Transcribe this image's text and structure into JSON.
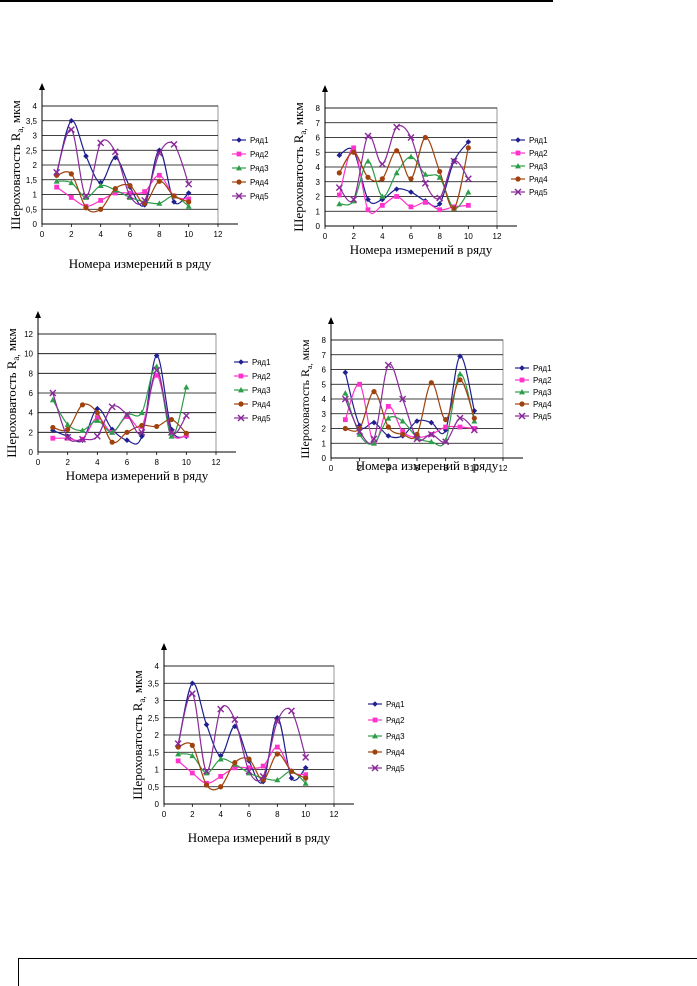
{
  "series_names": [
    "Ряд1",
    "Ряд2",
    "Ряд3",
    "Ряд4",
    "Ряд5"
  ],
  "series_colors": [
    "#1f1f8f",
    "#ff33cc",
    "#2e9e4a",
    "#a0420e",
    "#8a2a9a"
  ],
  "chart_data": [
    {
      "type": "line",
      "title": "",
      "xlabel": "Номера измерений в ряду",
      "ylabel_main": "Шероховатость R",
      "ylabel_sub": "a,",
      "ylabel_unit": " мкм",
      "xlim": [
        0,
        12
      ],
      "xticks": [
        "0",
        "2",
        "4",
        "6",
        "8",
        "10",
        "12"
      ],
      "ylim": [
        0,
        4
      ],
      "yticks": [
        "0",
        "0,5",
        "1",
        "1,5",
        "2",
        "2,5",
        "3",
        "3,5",
        "4"
      ],
      "grid": true,
      "legend": "right",
      "x": [
        1,
        2,
        3,
        4,
        5,
        6,
        7,
        8,
        9,
        10
      ],
      "series": [
        {
          "name": "Ряд1",
          "values": [
            1.7,
            3.5,
            2.3,
            1.4,
            2.25,
            1.25,
            0.65,
            2.5,
            0.75,
            1.05
          ]
        },
        {
          "name": "Ряд2",
          "values": [
            1.25,
            0.9,
            0.6,
            0.8,
            1.05,
            1.05,
            1.1,
            1.65,
            0.95,
            0.85
          ]
        },
        {
          "name": "Ряд3",
          "values": [
            1.45,
            1.4,
            0.9,
            1.3,
            1.15,
            0.9,
            0.75,
            0.7,
            0.95,
            0.6
          ]
        },
        {
          "name": "Ряд4",
          "values": [
            1.65,
            1.7,
            0.55,
            0.5,
            1.2,
            1.3,
            0.7,
            1.45,
            0.95,
            0.75
          ]
        },
        {
          "name": "Ряд5",
          "values": [
            1.75,
            3.2,
            0.95,
            2.75,
            2.45,
            0.95,
            0.8,
            2.4,
            2.7,
            1.35
          ]
        }
      ]
    },
    {
      "type": "line",
      "title": "",
      "xlabel": "Номера измерений в ряду",
      "ylabel_main": "Шероховатость R",
      "ylabel_sub": "a,",
      "ylabel_unit": " мкм",
      "xlim": [
        0,
        12
      ],
      "xticks": [
        "0",
        "2",
        "4",
        "6",
        "8",
        "10",
        "12"
      ],
      "ylim": [
        0,
        8
      ],
      "yticks": [
        "0",
        "1",
        "2",
        "3",
        "4",
        "5",
        "6",
        "7",
        "8"
      ],
      "grid": true,
      "legend": "right",
      "x": [
        1,
        2,
        3,
        4,
        5,
        6,
        7,
        8,
        9,
        10
      ],
      "series": [
        {
          "name": "Ряд1",
          "values": [
            4.8,
            5.1,
            1.8,
            1.8,
            2.5,
            2.3,
            1.7,
            1.5,
            4.4,
            5.7
          ]
        },
        {
          "name": "Ряд2",
          "values": [
            2.1,
            5.3,
            1.1,
            1.4,
            2.0,
            1.3,
            1.6,
            1.1,
            1.3,
            1.4
          ]
        },
        {
          "name": "Ряд3",
          "values": [
            1.5,
            1.7,
            4.4,
            2.0,
            3.6,
            4.7,
            3.5,
            3.3,
            1.2,
            2.3
          ]
        },
        {
          "name": "Ряд4",
          "values": [
            3.6,
            5.0,
            3.3,
            3.2,
            5.1,
            3.2,
            6.0,
            3.7,
            1.2,
            5.3
          ]
        },
        {
          "name": "Ряд5",
          "values": [
            2.6,
            1.8,
            6.1,
            4.2,
            6.7,
            6.0,
            2.9,
            1.9,
            4.4,
            3.2
          ]
        }
      ]
    },
    {
      "type": "line",
      "title": "",
      "xlabel": "Номера измерений в ряду",
      "ylabel_main": "Шероховатость R",
      "ylabel_sub": "a,",
      "ylabel_unit": " мкм",
      "xlim": [
        0,
        12
      ],
      "xticks": [
        "0",
        "2",
        "4",
        "6",
        "8",
        "10",
        "12"
      ],
      "ylim": [
        0,
        12
      ],
      "yticks": [
        "0",
        "2",
        "4",
        "6",
        "8",
        "10",
        "12"
      ],
      "grid": true,
      "legend": "right",
      "x": [
        1,
        2,
        3,
        4,
        5,
        6,
        7,
        8,
        9,
        10
      ],
      "series": [
        {
          "name": "Ряд1",
          "values": [
            2.2,
            1.6,
            1.2,
            4.4,
            2.3,
            1.2,
            1.6,
            9.8,
            2.3,
            1.6
          ]
        },
        {
          "name": "Ряд2",
          "values": [
            1.4,
            1.4,
            1.3,
            3.5,
            2.0,
            3.6,
            2.6,
            7.8,
            1.9,
            1.7
          ]
        },
        {
          "name": "Ряд3",
          "values": [
            5.3,
            2.8,
            2.2,
            3.2,
            2.0,
            3.8,
            4.0,
            8.7,
            1.6,
            6.6
          ]
        },
        {
          "name": "Ряд4",
          "values": [
            2.5,
            2.3,
            4.8,
            4.0,
            1.0,
            2.0,
            2.7,
            2.6,
            3.3,
            1.9
          ]
        },
        {
          "name": "Ряд5",
          "values": [
            6.0,
            1.5,
            1.3,
            1.6,
            4.6,
            3.8,
            2.0,
            8.3,
            2.0,
            3.7
          ]
        }
      ]
    },
    {
      "type": "line",
      "title": "",
      "xlabel": "Номера измерений в ряду",
      "ylabel_main": "Шероховатость R",
      "ylabel_sub": "a,",
      "ylabel_unit": " мкм",
      "xlim": [
        0,
        12
      ],
      "xticks": [
        "0",
        "2",
        "4",
        "6",
        "8",
        "10",
        "12"
      ],
      "ylim": [
        0,
        8
      ],
      "yticks": [
        "0",
        "1",
        "2",
        "3",
        "4",
        "5",
        "6",
        "7",
        "8"
      ],
      "grid": true,
      "legend": "right",
      "x": [
        1,
        2,
        3,
        4,
        5,
        6,
        7,
        8,
        9,
        10
      ],
      "series": [
        {
          "name": "Ряд1",
          "values": [
            5.8,
            2.2,
            2.4,
            1.5,
            1.5,
            2.5,
            2.4,
            1.9,
            6.9,
            3.2
          ]
        },
        {
          "name": "Ряд2",
          "values": [
            2.6,
            5.0,
            1.0,
            3.5,
            1.8,
            1.4,
            1.6,
            2.1,
            2.1,
            2.0
          ]
        },
        {
          "name": "Ряд3",
          "values": [
            4.4,
            1.6,
            1.0,
            2.7,
            2.5,
            1.4,
            1.1,
            1.2,
            5.7,
            2.5
          ]
        },
        {
          "name": "Ряд4",
          "values": [
            2.0,
            2.0,
            4.5,
            2.1,
            1.6,
            1.6,
            5.1,
            2.6,
            5.3,
            2.7
          ]
        },
        {
          "name": "Ряд5",
          "values": [
            4.0,
            1.8,
            1.3,
            6.3,
            4.0,
            1.3,
            1.6,
            1.1,
            2.7,
            1.9
          ]
        }
      ]
    },
    {
      "type": "line",
      "title": "",
      "xlabel": "Номера измерений в ряду",
      "ylabel_main": "Шероховатость R",
      "ylabel_sub": "a,",
      "ylabel_unit": " мкм",
      "xlim": [
        0,
        12
      ],
      "xticks": [
        "0",
        "2",
        "4",
        "6",
        "8",
        "10",
        "12"
      ],
      "ylim": [
        0,
        4
      ],
      "yticks": [
        "0",
        "0,5",
        "1",
        "1,5",
        "2",
        "2,5",
        "3",
        "3,5",
        "4"
      ],
      "grid": true,
      "legend": "right",
      "x": [
        1,
        2,
        3,
        4,
        5,
        6,
        7,
        8,
        9,
        10
      ],
      "series": [
        {
          "name": "Ряд1",
          "values": [
            1.7,
            3.5,
            2.3,
            1.4,
            2.25,
            1.25,
            0.65,
            2.5,
            0.75,
            1.05
          ]
        },
        {
          "name": "Ряд2",
          "values": [
            1.25,
            0.9,
            0.6,
            0.8,
            1.05,
            1.05,
            1.1,
            1.65,
            0.95,
            0.85
          ]
        },
        {
          "name": "Ряд3",
          "values": [
            1.45,
            1.4,
            0.9,
            1.3,
            1.15,
            0.9,
            0.75,
            0.7,
            0.95,
            0.6
          ]
        },
        {
          "name": "Ряд4",
          "values": [
            1.65,
            1.7,
            0.55,
            0.5,
            1.2,
            1.3,
            0.7,
            1.45,
            0.95,
            0.75
          ]
        },
        {
          "name": "Ряд5",
          "values": [
            1.75,
            3.2,
            0.95,
            2.75,
            2.45,
            0.95,
            0.8,
            2.4,
            2.7,
            1.35
          ]
        }
      ]
    }
  ]
}
